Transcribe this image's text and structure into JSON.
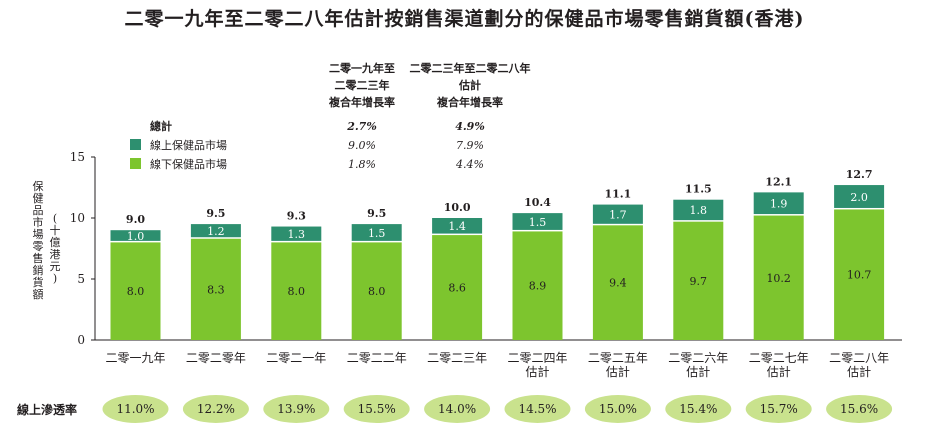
{
  "title": "二零一九年至二零二八年估計按銷售渠道劃分的保健品市場零售銷貨額(香港)",
  "chart_data": {
    "type": "bar",
    "stacked": true,
    "ylabel": "保健品市場零售銷貨額",
    "ylabel_unit": "(十億港元)",
    "ylim": [
      0,
      15
    ],
    "yticks": [
      0,
      5,
      10,
      15
    ],
    "grid": false,
    "categories": [
      [
        "二零一九年"
      ],
      [
        "二零二零年"
      ],
      [
        "二零二一年"
      ],
      [
        "二零二二年"
      ],
      [
        "二零二三年"
      ],
      [
        "二零二四年",
        "估計"
      ],
      [
        "二零二五年",
        "估計"
      ],
      [
        "二零二六年",
        "估計"
      ],
      [
        "二零二七年",
        "估計"
      ],
      [
        "二零二八年",
        "估計"
      ]
    ],
    "series": [
      {
        "name": "線下保健品市場",
        "color": "#7dc52e",
        "values": [
          8.0,
          8.3,
          8.0,
          8.0,
          8.6,
          8.9,
          9.4,
          9.7,
          10.2,
          10.7
        ],
        "labels": [
          "8.0",
          "8.3",
          "8.0",
          "8.0",
          "8.6",
          "8.9",
          "9.4",
          "9.7",
          "10.2",
          "10.7"
        ]
      },
      {
        "name": "線上保健品市場",
        "color": "#2d8f6f",
        "values": [
          1.0,
          1.2,
          1.3,
          1.5,
          1.4,
          1.5,
          1.7,
          1.8,
          1.9,
          2.0
        ],
        "labels": [
          "1.0",
          "1.2",
          "1.3",
          "1.5",
          "1.4",
          "1.5",
          "1.7",
          "1.8",
          "1.9",
          "2.0"
        ]
      }
    ],
    "totals": [
      "9.0",
      "9.5",
      "9.3",
      "9.5",
      "10.0",
      "10.4",
      "11.1",
      "11.5",
      "12.1",
      "12.7"
    ],
    "cagr_table": {
      "headers": [
        [
          "二零一九年至",
          "二零二三年",
          "複合年增長率"
        ],
        [
          "二零二三年至二零二八年",
          "估計",
          "複合年增長率"
        ]
      ],
      "rows": [
        {
          "label": "總計",
          "values": [
            "2.7%",
            "4.9%"
          ]
        },
        {
          "label": "線上保健品市場",
          "values": [
            "9.0%",
            "7.9%"
          ]
        },
        {
          "label": "線下保健品市場",
          "values": [
            "1.8%",
            "4.4%"
          ]
        }
      ]
    },
    "penetration": {
      "label": "線上滲透率",
      "values": [
        "11.0%",
        "12.2%",
        "13.9%",
        "15.5%",
        "14.0%",
        "14.5%",
        "15.0%",
        "15.4%",
        "15.7%",
        "15.6%"
      ]
    }
  }
}
